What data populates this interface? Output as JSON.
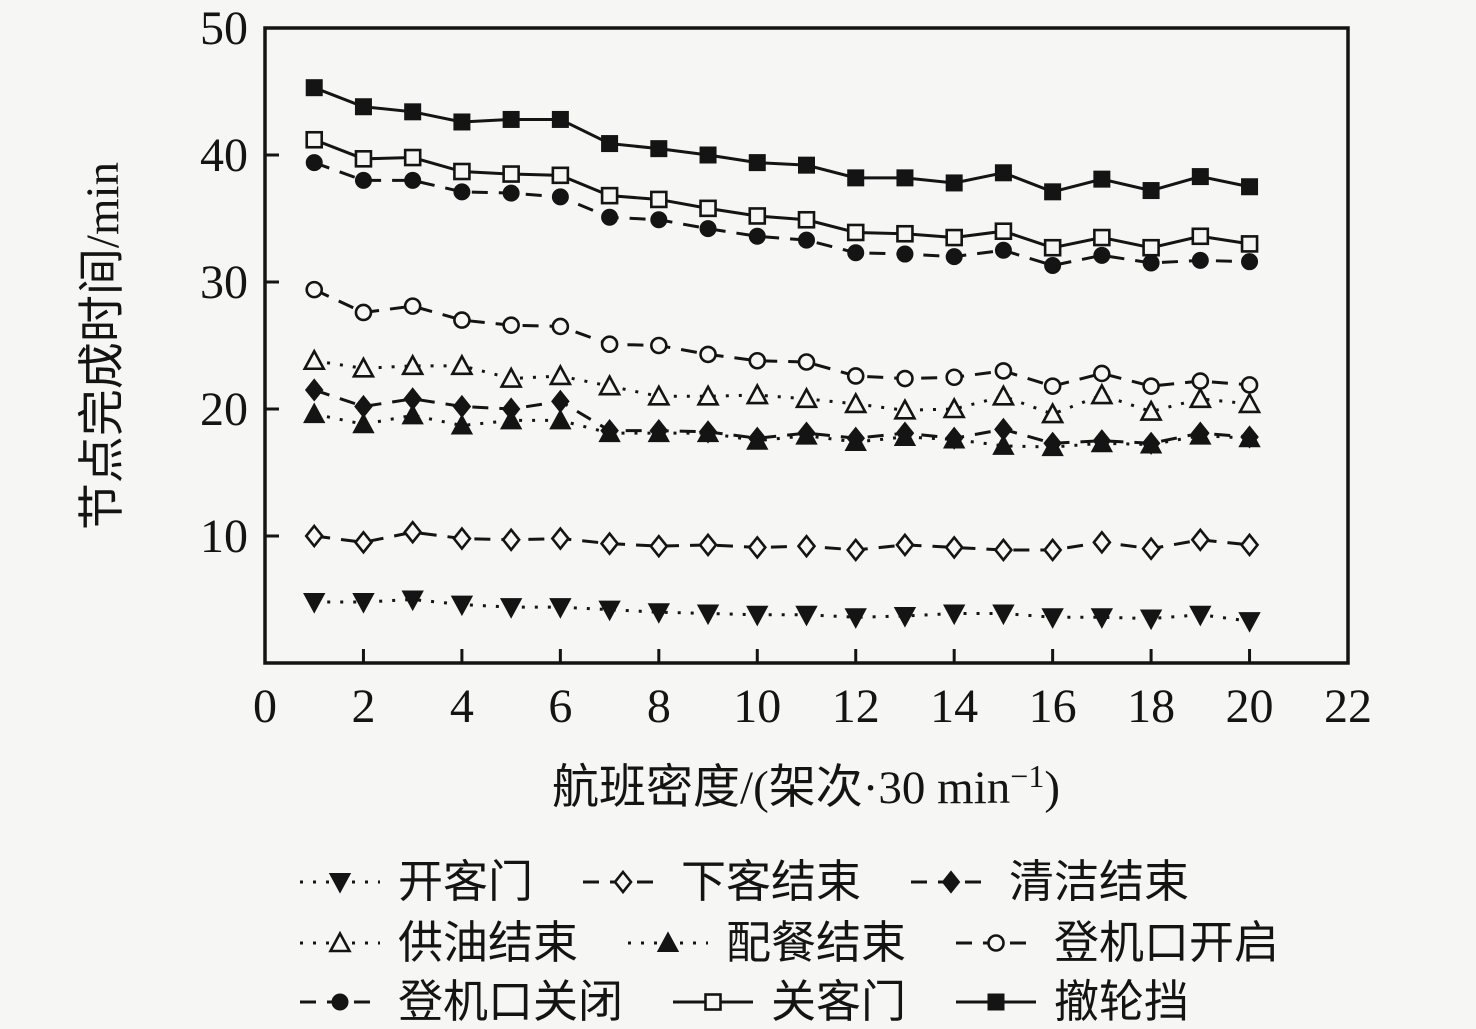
{
  "figure": {
    "background": "#f6f6f5",
    "ink": "#141414"
  },
  "chart_data": {
    "type": "line",
    "title": "",
    "xlabel": "航班密度/(架次·30 min⁻¹)",
    "xlabel_parts": {
      "main": "航班密度/(架次·30 min",
      "sup": "−1",
      "close": ")"
    },
    "ylabel": "节点完成时间/min",
    "xlim": [
      0,
      22
    ],
    "ylim": [
      0,
      50
    ],
    "x_ticks": [
      0,
      2,
      4,
      6,
      8,
      10,
      12,
      14,
      16,
      18,
      20,
      22
    ],
    "y_ticks": [
      10,
      20,
      30,
      40,
      50
    ],
    "grid": false,
    "legend_position": "below-three-rows",
    "x": [
      1,
      2,
      3,
      4,
      5,
      6,
      7,
      8,
      9,
      10,
      11,
      12,
      13,
      14,
      15,
      16,
      17,
      18,
      19,
      20
    ],
    "series": [
      {
        "id": "open-pax-door",
        "name": "开客门",
        "marker": "triangle-down",
        "fill": "filled",
        "line": "dotted",
        "values": [
          4.8,
          4.8,
          5.0,
          4.6,
          4.4,
          4.4,
          4.2,
          4.0,
          3.9,
          3.8,
          3.8,
          3.6,
          3.7,
          3.9,
          3.9,
          3.6,
          3.6,
          3.5,
          3.8,
          3.3
        ]
      },
      {
        "id": "deboard-end",
        "name": "下客结束",
        "marker": "diamond",
        "fill": "open",
        "line": "dashed",
        "values": [
          10.0,
          9.5,
          10.3,
          9.8,
          9.7,
          9.8,
          9.4,
          9.2,
          9.3,
          9.1,
          9.2,
          8.9,
          9.3,
          9.1,
          8.9,
          8.9,
          9.5,
          9.0,
          9.7,
          9.3
        ]
      },
      {
        "id": "cleaning-end",
        "name": "清洁结束",
        "marker": "diamond",
        "fill": "filled",
        "line": "dashed",
        "values": [
          21.5,
          20.2,
          20.8,
          20.2,
          20.0,
          20.6,
          18.3,
          18.3,
          18.2,
          17.7,
          18.1,
          17.7,
          18.1,
          17.7,
          18.4,
          17.3,
          17.5,
          17.3,
          18.1,
          17.8
        ]
      },
      {
        "id": "fueling-end",
        "name": "供油结束",
        "marker": "triangle-up",
        "fill": "open",
        "line": "dotted",
        "values": [
          23.8,
          23.2,
          23.4,
          23.4,
          22.4,
          22.6,
          21.8,
          21.0,
          21.0,
          21.1,
          20.8,
          20.4,
          19.9,
          20.0,
          21.0,
          19.6,
          21.1,
          19.8,
          20.8,
          20.4
        ]
      },
      {
        "id": "catering-end",
        "name": "配餐结束",
        "marker": "triangle-up",
        "fill": "filled",
        "line": "dotted",
        "values": [
          19.6,
          18.8,
          19.5,
          18.7,
          19.1,
          19.1,
          18.1,
          18.1,
          18.1,
          17.5,
          17.9,
          17.4,
          17.8,
          17.6,
          17.1,
          17.0,
          17.3,
          17.2,
          17.9,
          17.7
        ]
      },
      {
        "id": "gate-open",
        "name": "登机口开启",
        "marker": "circle",
        "fill": "open",
        "line": "dashed",
        "values": [
          29.4,
          27.6,
          28.1,
          27.0,
          26.6,
          26.5,
          25.1,
          25.0,
          24.3,
          23.8,
          23.7,
          22.6,
          22.4,
          22.5,
          23.0,
          21.8,
          22.8,
          21.8,
          22.2,
          21.9
        ]
      },
      {
        "id": "gate-close",
        "name": "登机口关闭",
        "marker": "circle",
        "fill": "filled",
        "line": "dashed",
        "values": [
          39.4,
          38.0,
          38.0,
          37.1,
          37.0,
          36.7,
          35.1,
          34.9,
          34.2,
          33.6,
          33.3,
          32.3,
          32.2,
          32.0,
          32.5,
          31.3,
          32.1,
          31.5,
          31.7,
          31.6
        ]
      },
      {
        "id": "close-pax-door",
        "name": "关客门",
        "marker": "square",
        "fill": "open",
        "line": "solid",
        "values": [
          41.2,
          39.7,
          39.8,
          38.7,
          38.5,
          38.4,
          36.8,
          36.5,
          35.8,
          35.2,
          34.9,
          33.9,
          33.8,
          33.5,
          34.0,
          32.7,
          33.5,
          32.7,
          33.6,
          33.0
        ]
      },
      {
        "id": "remove-chocks",
        "name": "撤轮挡",
        "marker": "square",
        "fill": "filled",
        "line": "solid",
        "values": [
          45.3,
          43.8,
          43.4,
          42.6,
          42.8,
          42.8,
          40.9,
          40.5,
          40.0,
          39.4,
          39.2,
          38.2,
          38.2,
          37.8,
          38.6,
          37.1,
          38.1,
          37.2,
          38.3,
          37.5
        ]
      }
    ],
    "legend_rows": [
      [
        "open-pax-door",
        "deboard-end",
        "cleaning-end"
      ],
      [
        "fueling-end",
        "catering-end",
        "gate-open"
      ],
      [
        "gate-close",
        "close-pax-door",
        "remove-chocks"
      ]
    ]
  }
}
